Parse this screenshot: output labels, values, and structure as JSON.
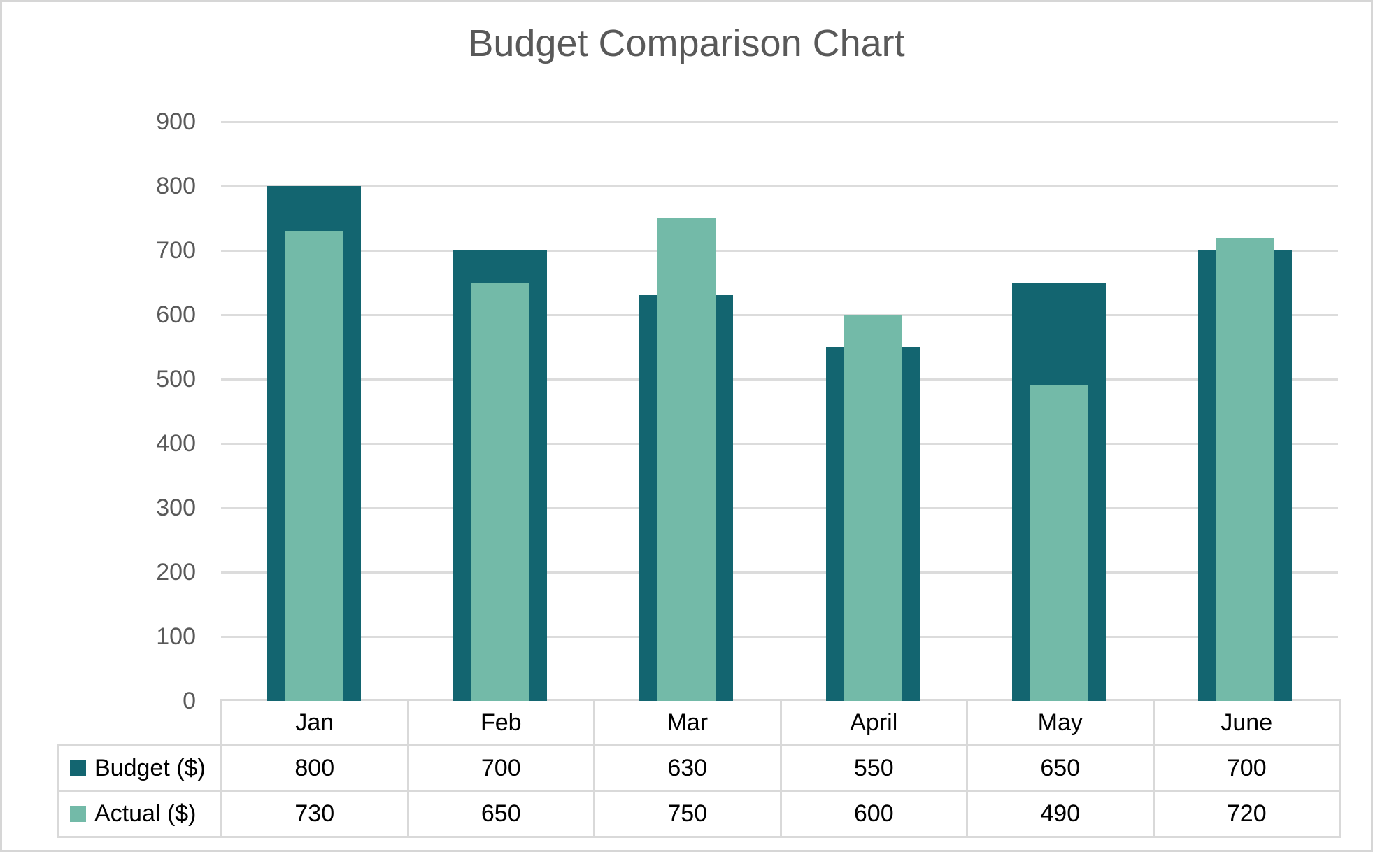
{
  "chart_title": "Budget Comparison Chart",
  "colors": {
    "budget": "#136570",
    "actual": "#73baa8",
    "gridline": "#dcdcdc",
    "axis_label_text": "#595959",
    "title_text": "#595959",
    "table_border": "#d9d9d9",
    "table_text": "#000000",
    "frame_border": "#d6d6d6"
  },
  "chart_data": {
    "type": "bar",
    "title": "Budget Comparison Chart",
    "categories": [
      "Jan",
      "Feb",
      "Mar",
      "April",
      "May",
      "June"
    ],
    "series": [
      {
        "name": "Budget ($)",
        "color_key": "budget",
        "values": [
          800,
          700,
          630,
          550,
          650,
          700
        ]
      },
      {
        "name": "Actual ($)",
        "color_key": "actual",
        "values": [
          730,
          650,
          750,
          600,
          490,
          720
        ]
      }
    ],
    "xlabel": "",
    "ylabel": "",
    "ylim": [
      0,
      900
    ],
    "yticks": [
      0,
      100,
      200,
      300,
      400,
      500,
      600,
      700,
      800,
      900
    ],
    "grid": "horizontal",
    "legend_position": "data-table-row-headers",
    "has_data_table": true,
    "bar_style": "actual-overlaid-on-budget"
  }
}
